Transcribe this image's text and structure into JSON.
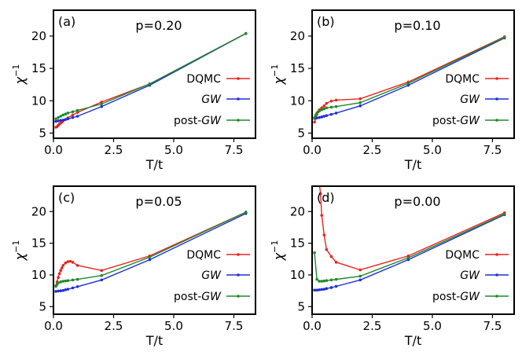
{
  "figure": {
    "legend_labels": [
      "DQMC",
      "GW",
      "post-GW"
    ],
    "legend_italic": [
      false,
      true,
      true
    ],
    "legend_prefix": [
      "",
      "",
      "post-"
    ]
  },
  "colors": {
    "DQMC": "#e8231f",
    "GW": "#1f2fd6",
    "post-GW": "#1e8a2a"
  },
  "chart_data": [
    {
      "type": "line",
      "panel_label": "(a)",
      "title": "p=0.20",
      "xlabel": "T/t",
      "ylabel": "χ",
      "ylabel_sup": "−1",
      "xlim": [
        0,
        8.4
      ],
      "ylim": [
        4.2,
        24
      ],
      "xticks": [
        "0.0",
        "2.5",
        "5.0",
        "7.5"
      ],
      "xtick_values": [
        0,
        2.5,
        5,
        7.5
      ],
      "yticks": [
        "5",
        "10",
        "15",
        "20"
      ],
      "ytick_values": [
        5,
        10,
        15,
        20
      ],
      "series": [
        {
          "name": "DQMC",
          "x": [
            0.1,
            0.15,
            0.2,
            0.25,
            0.3,
            0.35,
            0.4,
            0.5,
            0.6,
            0.8,
            1.0,
            2.0,
            4.0,
            8.0
          ],
          "y": [
            5.9,
            6.0,
            6.2,
            6.4,
            6.55,
            6.7,
            6.85,
            7.1,
            7.35,
            7.8,
            8.2,
            9.8,
            12.6,
            20.4
          ]
        },
        {
          "name": "GW",
          "x": [
            0.1,
            0.2,
            0.3,
            0.4,
            0.5,
            0.6,
            0.8,
            1.0,
            2.0,
            4.0,
            8.0
          ],
          "y": [
            6.8,
            6.9,
            6.95,
            7.0,
            7.1,
            7.2,
            7.4,
            7.6,
            9.1,
            12.4,
            20.4
          ]
        },
        {
          "name": "post-GW",
          "x": [
            0.1,
            0.2,
            0.3,
            0.4,
            0.5,
            0.6,
            0.8,
            1.0,
            2.0,
            4.0,
            8.0
          ],
          "y": [
            7.2,
            7.4,
            7.6,
            7.8,
            7.95,
            8.1,
            8.3,
            8.5,
            9.5,
            12.6,
            20.4
          ]
        }
      ]
    },
    {
      "type": "line",
      "panel_label": "(b)",
      "title": "p=0.10",
      "xlabel": "T/t",
      "ylabel": "χ",
      "ylabel_sup": "−1",
      "xlim": [
        0,
        8.4
      ],
      "ylim": [
        4.2,
        24
      ],
      "xticks": [
        "0.0",
        "2.5",
        "5.0",
        "7.5"
      ],
      "xtick_values": [
        0,
        2.5,
        5,
        7.5
      ],
      "yticks": [
        "5",
        "10",
        "15",
        "20"
      ],
      "ytick_values": [
        5,
        10,
        15,
        20
      ],
      "series": [
        {
          "name": "DQMC",
          "x": [
            0.1,
            0.15,
            0.2,
            0.25,
            0.3,
            0.4,
            0.5,
            0.6,
            0.8,
            1.0,
            2.0,
            4.0,
            8.0
          ],
          "y": [
            6.7,
            7.3,
            7.9,
            8.3,
            8.6,
            8.9,
            9.2,
            9.6,
            9.95,
            10.1,
            10.3,
            12.9,
            19.9
          ]
        },
        {
          "name": "GW",
          "x": [
            0.1,
            0.2,
            0.3,
            0.4,
            0.5,
            0.6,
            0.8,
            1.0,
            2.0,
            4.0,
            8.0
          ],
          "y": [
            7.3,
            7.35,
            7.4,
            7.5,
            7.6,
            7.7,
            7.9,
            8.1,
            9.2,
            12.4,
            19.7
          ]
        },
        {
          "name": "post-GW",
          "x": [
            0.1,
            0.15,
            0.2,
            0.3,
            0.4,
            0.5,
            0.6,
            0.8,
            1.0,
            2.0,
            4.0,
            8.0
          ],
          "y": [
            7.4,
            7.8,
            8.1,
            8.4,
            8.6,
            8.75,
            8.9,
            9.0,
            9.1,
            9.7,
            12.7,
            19.8
          ]
        }
      ]
    },
    {
      "type": "line",
      "panel_label": "(c)",
      "title": "p=0.05",
      "xlabel": "T/t",
      "ylabel": "χ",
      "ylabel_sup": "−1",
      "xlim": [
        0,
        8.4
      ],
      "ylim": [
        3.8,
        24
      ],
      "xticks": [
        "0.0",
        "2.5",
        "5.0",
        "7.5"
      ],
      "xtick_values": [
        0,
        2.5,
        5,
        7.5
      ],
      "yticks": [
        "5",
        "10",
        "15",
        "20"
      ],
      "ytick_values": [
        5,
        10,
        15,
        20
      ],
      "series": [
        {
          "name": "DQMC",
          "x": [
            0.1,
            0.15,
            0.2,
            0.25,
            0.3,
            0.35,
            0.4,
            0.5,
            0.6,
            0.7,
            0.8,
            1.0,
            2.0,
            4.0,
            8.0
          ],
          "y": [
            8.3,
            8.9,
            9.6,
            10.2,
            10.7,
            11.1,
            11.5,
            11.9,
            12.1,
            12.15,
            12.0,
            11.5,
            10.7,
            13.0,
            19.9
          ]
        },
        {
          "name": "GW",
          "x": [
            0.1,
            0.2,
            0.3,
            0.4,
            0.5,
            0.6,
            0.8,
            1.0,
            2.0,
            4.0,
            8.0
          ],
          "y": [
            7.4,
            7.45,
            7.5,
            7.55,
            7.65,
            7.75,
            7.95,
            8.15,
            9.2,
            12.4,
            19.7
          ]
        },
        {
          "name": "post-GW",
          "x": [
            0.1,
            0.15,
            0.2,
            0.3,
            0.4,
            0.5,
            0.6,
            0.8,
            1.0,
            2.0,
            4.0,
            8.0
          ],
          "y": [
            8.2,
            8.5,
            8.75,
            8.9,
            9.0,
            9.05,
            9.1,
            9.2,
            9.3,
            9.9,
            12.8,
            19.9
          ]
        }
      ]
    },
    {
      "type": "line",
      "panel_label": "(d)",
      "title": "p=0.00",
      "xlabel": "T/t",
      "ylabel": "χ",
      "ylabel_sup": "−1",
      "xlim": [
        0,
        8.4
      ],
      "ylim": [
        3.8,
        24
      ],
      "xticks": [
        "0.0",
        "2.5",
        "5.0",
        "7.5"
      ],
      "xtick_values": [
        0,
        2.5,
        5,
        7.5
      ],
      "yticks": [
        "5",
        "10",
        "15",
        "20"
      ],
      "ytick_values": [
        5,
        10,
        15,
        20
      ],
      "series": [
        {
          "name": "DQMC",
          "x": [
            0.3,
            0.35,
            0.4,
            0.5,
            0.6,
            0.8,
            1.0,
            2.0,
            4.0,
            8.0
          ],
          "y": [
            24.5,
            22.8,
            19.4,
            16.3,
            14.0,
            12.9,
            12.0,
            10.8,
            13.0,
            19.8
          ]
        },
        {
          "name": "GW",
          "x": [
            0.1,
            0.2,
            0.3,
            0.4,
            0.5,
            0.6,
            0.8,
            1.0,
            2.0,
            4.0,
            8.0
          ],
          "y": [
            7.6,
            7.6,
            7.65,
            7.7,
            7.75,
            7.85,
            8.0,
            8.2,
            9.2,
            12.4,
            19.5
          ]
        },
        {
          "name": "post-GW",
          "x": [
            0.1,
            0.2,
            0.3,
            0.4,
            0.5,
            0.6,
            0.8,
            1.0,
            2.0,
            4.0,
            8.0
          ],
          "y": [
            13.5,
            9.3,
            9.0,
            9.0,
            9.05,
            9.1,
            9.2,
            9.3,
            9.8,
            12.7,
            19.6
          ]
        }
      ]
    }
  ]
}
